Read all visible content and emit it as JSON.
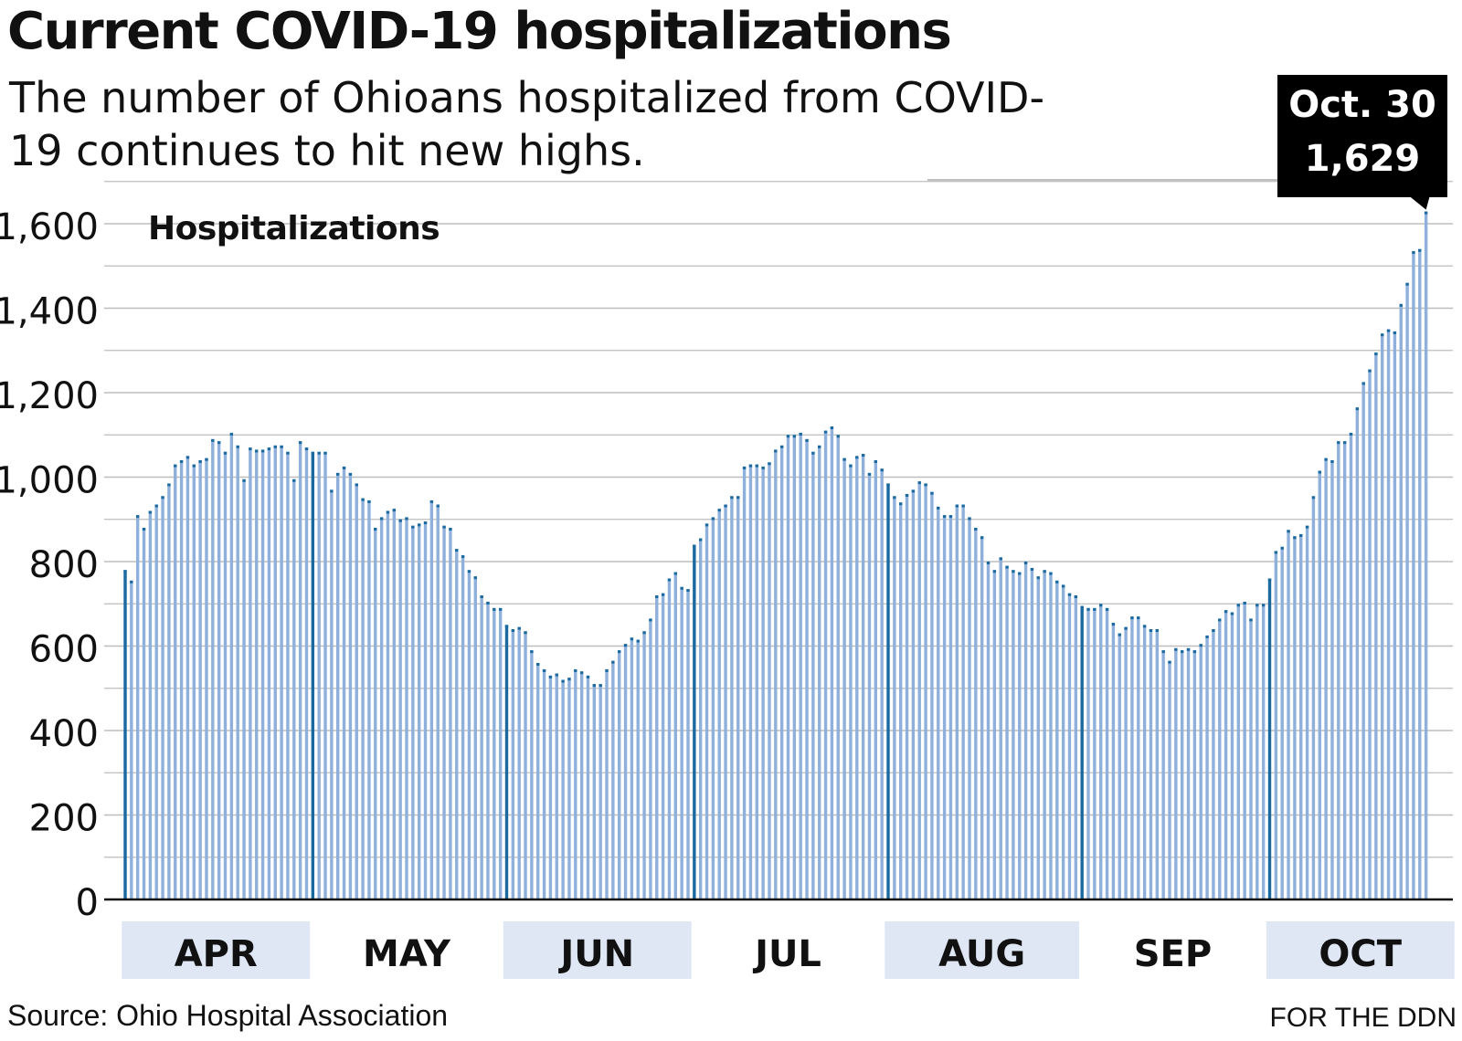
{
  "title": "Current COVID-19 hospitalizations",
  "subtitle": "The number of Ohioans hospitalized from COVID-19 continues to hit new highs.",
  "source": "Source: Ohio Hospital Association",
  "credit": "FOR THE DDN",
  "colors": {
    "bar": "#8fb0db",
    "month_bar": "#1a6aa0",
    "band": "#dfe7f4",
    "grid": "#bdbdbd",
    "callout_bg": "#000000"
  },
  "chart_data": {
    "type": "bar",
    "ylabel": "Hospitalizations",
    "ylim": [
      0,
      1600
    ],
    "yticks": [
      0,
      200,
      400,
      600,
      800,
      1000,
      1200,
      1400,
      1600
    ],
    "ytick_labels": [
      "0",
      "200",
      "400",
      "600",
      "800",
      "1,000",
      "1,200",
      "1,400",
      "1,600"
    ],
    "grid": true,
    "x_start": "2020-04-01",
    "x_end": "2020-10-30",
    "months": [
      {
        "label": "APR",
        "start": "2020-04-01",
        "shaded": true
      },
      {
        "label": "MAY",
        "start": "2020-05-01",
        "shaded": false
      },
      {
        "label": "JUN",
        "start": "2020-06-01",
        "shaded": true
      },
      {
        "label": "JUL",
        "start": "2020-07-01",
        "shaded": false
      },
      {
        "label": "AUG",
        "start": "2020-08-01",
        "shaded": true
      },
      {
        "label": "SEP",
        "start": "2020-09-01",
        "shaded": false
      },
      {
        "label": "OCT",
        "start": "2020-10-01",
        "shaded": true
      }
    ],
    "values": [
      780,
      755,
      910,
      880,
      920,
      935,
      955,
      985,
      1030,
      1040,
      1050,
      1030,
      1040,
      1045,
      1090,
      1085,
      1060,
      1105,
      1075,
      995,
      1070,
      1065,
      1065,
      1070,
      1075,
      1075,
      1060,
      995,
      1085,
      1070,
      1060,
      1060,
      1060,
      970,
      1010,
      1025,
      1010,
      985,
      950,
      945,
      880,
      905,
      920,
      925,
      900,
      905,
      885,
      890,
      895,
      945,
      935,
      885,
      880,
      830,
      815,
      780,
      765,
      720,
      705,
      690,
      690,
      650,
      640,
      645,
      635,
      590,
      560,
      545,
      530,
      535,
      520,
      525,
      545,
      540,
      530,
      510,
      510,
      545,
      565,
      590,
      605,
      620,
      615,
      635,
      665,
      720,
      725,
      760,
      775,
      740,
      735,
      840,
      855,
      890,
      905,
      925,
      935,
      955,
      955,
      1025,
      1030,
      1030,
      1025,
      1035,
      1065,
      1075,
      1100,
      1100,
      1105,
      1090,
      1060,
      1075,
      1110,
      1120,
      1100,
      1045,
      1030,
      1050,
      1055,
      1010,
      1040,
      1020,
      985,
      955,
      940,
      960,
      970,
      990,
      985,
      965,
      930,
      910,
      910,
      935,
      935,
      905,
      880,
      860,
      800,
      780,
      810,
      790,
      780,
      775,
      800,
      785,
      765,
      780,
      775,
      755,
      745,
      725,
      720,
      695,
      690,
      690,
      700,
      690,
      655,
      630,
      645,
      670,
      670,
      650,
      640,
      640,
      590,
      565,
      595,
      590,
      595,
      590,
      605,
      625,
      640,
      665,
      685,
      680,
      700,
      705,
      665,
      700,
      700,
      760,
      825,
      835,
      875,
      860,
      865,
      885,
      955,
      1015,
      1045,
      1040,
      1085,
      1085,
      1105,
      1165,
      1225,
      1255,
      1295,
      1340,
      1350,
      1345,
      1410,
      1460,
      1535,
      1540,
      1629
    ]
  },
  "callout": {
    "date": "Oct. 30",
    "value": "1,629"
  }
}
